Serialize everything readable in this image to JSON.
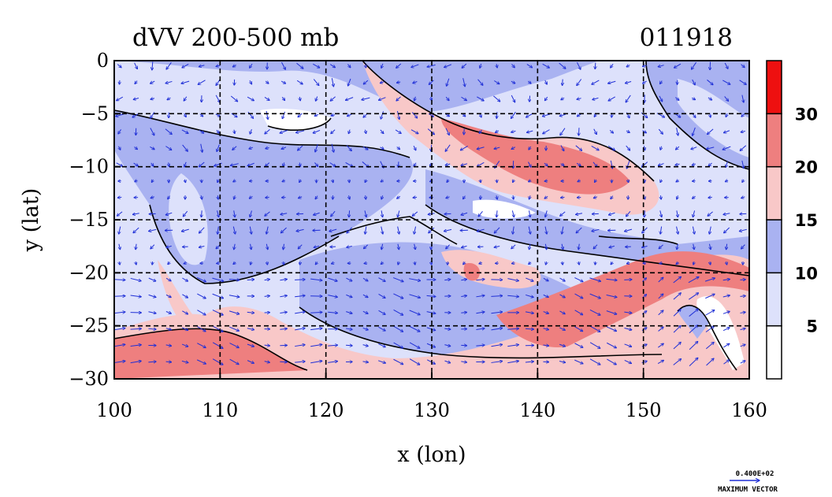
{
  "chart_data": {
    "type": "heatmap",
    "title": "dVV 200-500 mb",
    "date_label": "011918",
    "xlabel": "x (lon)",
    "ylabel": "y (lat)",
    "xlim": [
      100,
      160
    ],
    "ylim": [
      -30,
      0
    ],
    "x_ticks": [
      100,
      110,
      120,
      130,
      140,
      150,
      160
    ],
    "x_tick_labels": [
      "100",
      "110",
      "120",
      "130",
      "140",
      "150",
      "160"
    ],
    "y_ticks": [
      0,
      -5,
      -10,
      -15,
      -20,
      -25,
      -30
    ],
    "y_tick_labels": [
      "0",
      "−5",
      "−10",
      "−15",
      "−20",
      "−25",
      "−30"
    ],
    "grid": true,
    "colorbar": {
      "levels": [
        0,
        5,
        10,
        15,
        20,
        30,
        35
      ],
      "labels": [
        "5",
        "10",
        "15",
        "20",
        "30"
      ],
      "colors": [
        "#ffffff",
        "#dde1fb",
        "#a9b2f1",
        "#f8c8c8",
        "#ee7f7f",
        "#ee1010"
      ]
    },
    "vector_color": "#1f2fd6",
    "max_vector": {
      "value_label": "0.400E+02",
      "caption": "MAXIMUM VECTOR"
    }
  }
}
